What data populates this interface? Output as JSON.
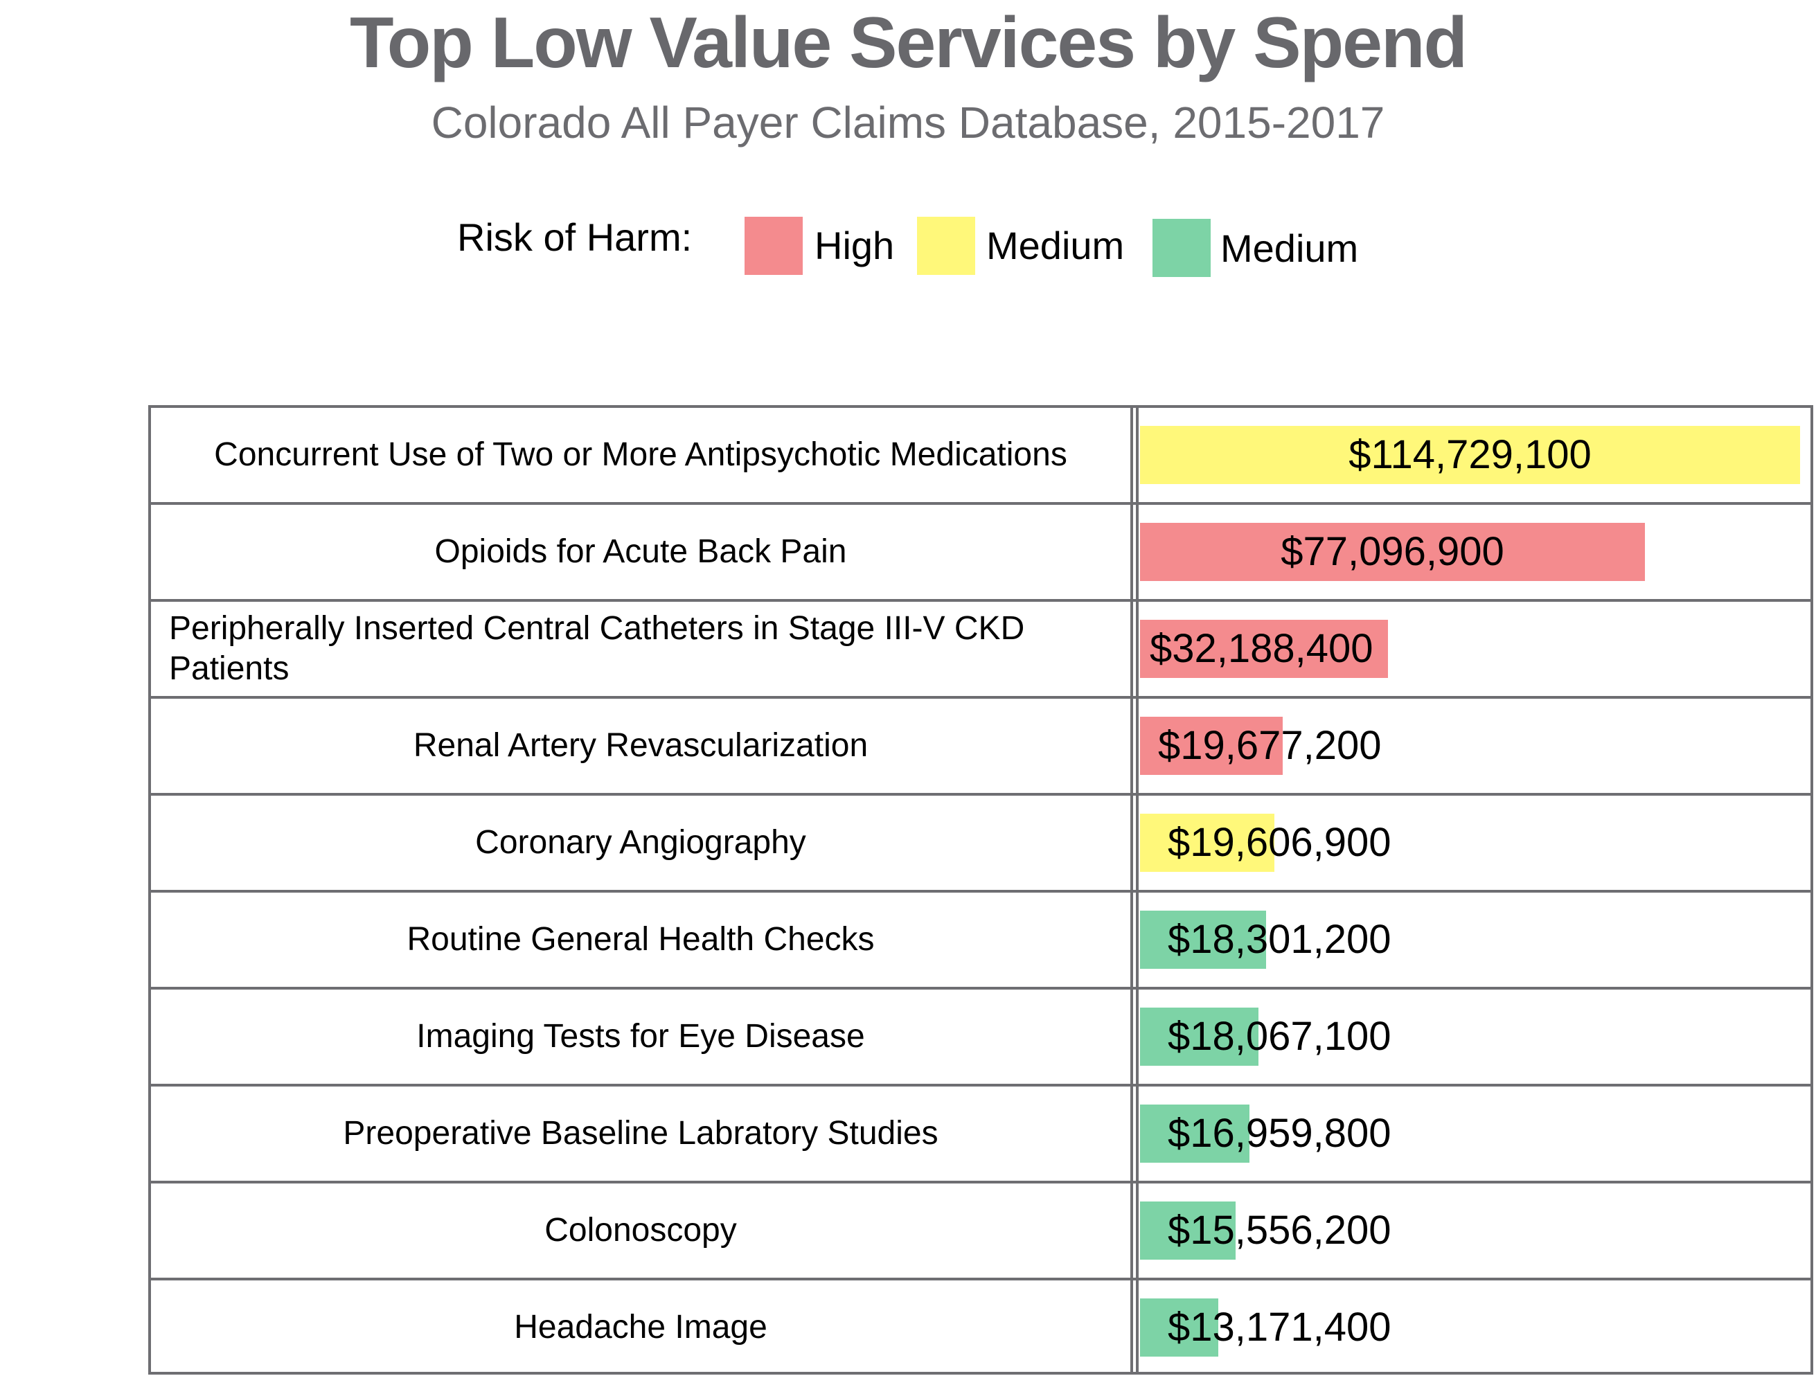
{
  "chart_data": {
    "type": "bar",
    "orientation": "horizontal",
    "title": "Top Low Value Services by Spend",
    "subtitle": "Colorado All Payer Claims Database, 2015-2017",
    "legend": {
      "label": "Risk of Harm:",
      "placement": "top-center",
      "entries": [
        {
          "name": "High",
          "color": "#F48B8E"
        },
        {
          "name": "Medium",
          "color": "#FFF87A"
        },
        {
          "name": "Medium",
          "color": "#7DD3A6"
        }
      ]
    },
    "rows": [
      {
        "category": "Concurrent Use of Two or More Antipsychotic Medications",
        "value": 114729100,
        "label": "$114,729,100",
        "risk": 1,
        "bar_fraction": 0.98
      },
      {
        "category": "Opioids for Acute Back Pain",
        "value": 77096900,
        "label": "$77,096,900",
        "risk": 0,
        "bar_fraction": 0.75
      },
      {
        "category": "Peripherally Inserted Central Catheters in Stage III-V CKD Patients",
        "value": 32188400,
        "label": "$32,188,400",
        "risk": 0,
        "bar_fraction": 0.368
      },
      {
        "category": "Renal Artery Revascularization",
        "value": 19677200,
        "label": "$19,677,200",
        "risk": 0,
        "bar_fraction": 0.212
      },
      {
        "category": "Coronary Angiography",
        "value": 19606900,
        "label": "$19,606,900",
        "risk": 1,
        "bar_fraction": 0.2
      },
      {
        "category": "Routine General Health Checks",
        "value": 18301200,
        "label": "$18,301,200",
        "risk": 2,
        "bar_fraction": 0.187
      },
      {
        "category": "Imaging Tests for Eye Disease",
        "value": 18067100,
        "label": "$18,067,100",
        "risk": 2,
        "bar_fraction": 0.176
      },
      {
        "category": "Preoperative Baseline Labratory Studies",
        "value": 16959800,
        "label": "$16,959,800",
        "risk": 2,
        "bar_fraction": 0.163
      },
      {
        "category": "Colonoscopy",
        "value": 15556200,
        "label": "$15,556,200",
        "risk": 2,
        "bar_fraction": 0.142
      },
      {
        "category": "Headache Image",
        "value": 13171400,
        "label": "$13,171,400",
        "risk": 2,
        "bar_fraction": 0.116
      }
    ]
  }
}
